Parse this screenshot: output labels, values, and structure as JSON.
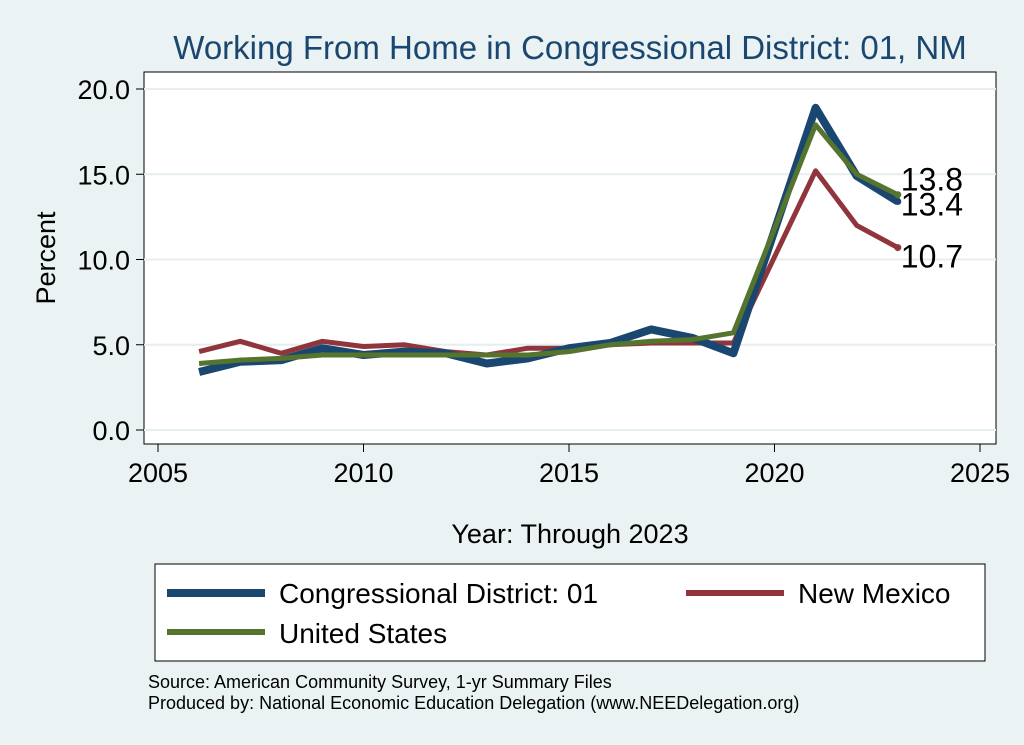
{
  "chart_data": {
    "type": "line",
    "title": "Working From Home in Congressional District: 01, NM",
    "xlabel": "Year: Through 2023",
    "ylabel": "Percent",
    "xlim": [
      2005,
      2025
    ],
    "ylim": [
      0,
      20
    ],
    "x_ticks": [
      "2005",
      "2010",
      "2015",
      "2020",
      "2025"
    ],
    "y_ticks": [
      "0.0",
      "5.0",
      "10.0",
      "15.0",
      "20.0"
    ],
    "x_tick_values": [
      2005,
      2010,
      2015,
      2020,
      2025
    ],
    "y_tick_values": [
      0,
      5,
      10,
      15,
      20
    ],
    "grid": true,
    "legend_position": "bottom",
    "x": [
      2006,
      2007,
      2008,
      2009,
      2010,
      2011,
      2012,
      2013,
      2014,
      2015,
      2016,
      2017,
      2018,
      2019,
      2021,
      2022,
      2023
    ],
    "series": [
      {
        "name": "Congressional District: 01",
        "color": "#1a476f",
        "values": [
          3.4,
          4.0,
          4.1,
          4.8,
          4.4,
          4.6,
          4.5,
          3.9,
          4.2,
          4.8,
          5.1,
          5.9,
          5.4,
          4.5,
          18.9,
          14.9,
          13.4
        ],
        "end_label": "13.4"
      },
      {
        "name": "New Mexico",
        "color": "#90353b",
        "values": [
          4.6,
          5.2,
          4.5,
          5.2,
          4.9,
          5.0,
          4.6,
          4.4,
          4.8,
          4.8,
          5.0,
          5.1,
          5.1,
          5.1,
          15.2,
          12.0,
          10.7
        ],
        "end_label": "10.7"
      },
      {
        "name": "United States",
        "color": "#55752f",
        "values": [
          3.9,
          4.1,
          4.2,
          4.4,
          4.4,
          4.4,
          4.4,
          4.4,
          4.4,
          4.6,
          5.0,
          5.2,
          5.3,
          5.7,
          17.9,
          15.0,
          13.8
        ],
        "end_label": "13.8"
      }
    ],
    "notes": [
      "Source: American Community Survey, 1-yr Summary Files",
      "Produced by: National Economic Education Delegation (www.NEEDelegation.org)"
    ]
  }
}
